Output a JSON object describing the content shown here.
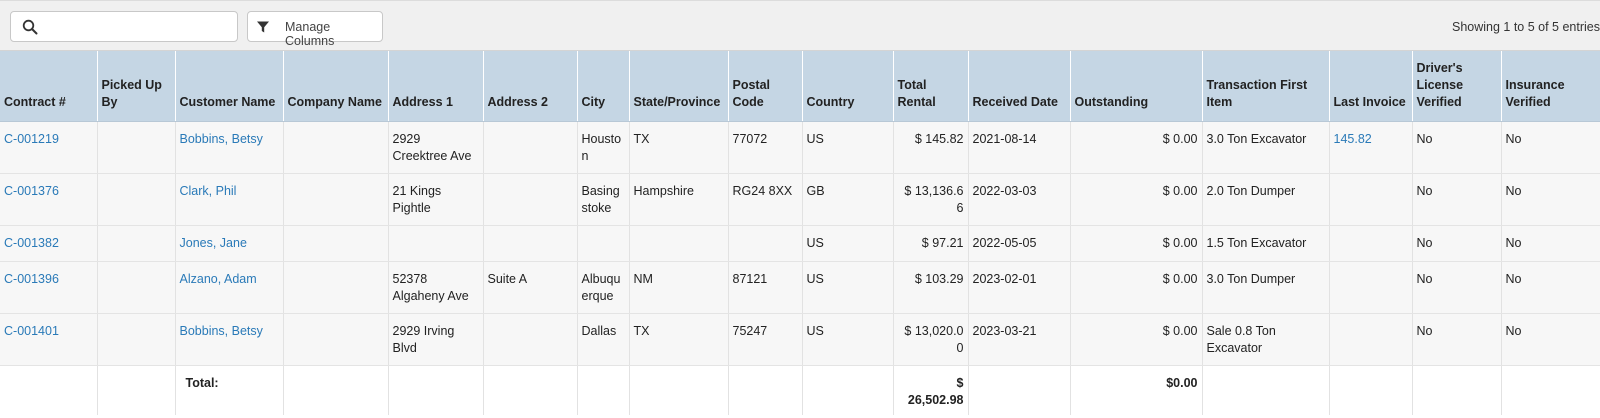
{
  "toolbar": {
    "search": {
      "value": "",
      "placeholder": "",
      "icon": "search-icon"
    },
    "manage_columns_label": "Manage Columns",
    "manage_columns_icon": "filter-icon",
    "entries_info": "Showing 1 to 5 of 5 entries"
  },
  "table": {
    "headers": [
      "Contract #",
      "Picked Up By",
      "Customer Name",
      "Company Name",
      "Address 1",
      "Address 2",
      "City",
      "State/Province",
      "Postal Code",
      "Country",
      "Total Rental",
      "Received Date",
      "Outstanding",
      "Transaction First Item",
      "Last Invoice",
      "Driver's License Verified",
      "Insurance Verified"
    ],
    "rows": [
      {
        "contract": "C-001219",
        "picked_up_by": "",
        "customer": "Bobbins, Betsy",
        "company": "",
        "address1": "2929 Creektree Ave",
        "address2": "",
        "city": "Houston",
        "state": "TX",
        "postal": "77072",
        "country": "US",
        "total_rental": "$ 145.82",
        "received_date": "2021-08-14",
        "outstanding": "$ 0.00",
        "first_item": "3.0 Ton Excavator",
        "last_invoice": "145.82",
        "dl_verified": "No",
        "ins_verified": "No"
      },
      {
        "contract": "C-001376",
        "picked_up_by": "",
        "customer": "Clark, Phil",
        "company": "",
        "address1": "21 Kings Pightle",
        "address2": "",
        "city": "Basingstoke",
        "state": "Hampshire",
        "postal": "RG24 8XX",
        "country": "GB",
        "total_rental": "$ 13,136.66",
        "received_date": "2022-03-03",
        "outstanding": "$ 0.00",
        "first_item": "2.0 Ton Dumper",
        "last_invoice": "",
        "dl_verified": "No",
        "ins_verified": "No"
      },
      {
        "contract": "C-001382",
        "picked_up_by": "",
        "customer": "Jones, Jane",
        "company": "",
        "address1": "",
        "address2": "",
        "city": "",
        "state": "",
        "postal": "",
        "country": "US",
        "total_rental": "$ 97.21",
        "received_date": "2022-05-05",
        "outstanding": "$ 0.00",
        "first_item": "1.5 Ton Excavator",
        "last_invoice": "",
        "dl_verified": "No",
        "ins_verified": "No"
      },
      {
        "contract": "C-001396",
        "picked_up_by": "",
        "customer": "Alzano, Adam",
        "company": "",
        "address1": "52378 Algaheny Ave",
        "address2": "Suite A",
        "city": "Albuquerque",
        "state": "NM",
        "postal": "87121",
        "country": "US",
        "total_rental": "$ 103.29",
        "received_date": "2023-02-01",
        "outstanding": "$ 0.00",
        "first_item": "3.0 Ton Dumper",
        "last_invoice": "",
        "dl_verified": "No",
        "ins_verified": "No"
      },
      {
        "contract": "C-001401",
        "picked_up_by": "",
        "customer": "Bobbins, Betsy",
        "company": "",
        "address1": "2929 Irving Blvd",
        "address2": "",
        "city": "Dallas",
        "state": "TX",
        "postal": "75247",
        "country": "US",
        "total_rental": "$ 13,020.00",
        "received_date": "2023-03-21",
        "outstanding": "$ 0.00",
        "first_item": "Sale 0.8 Ton Excavator",
        "last_invoice": "",
        "dl_verified": "No",
        "ins_verified": "No"
      }
    ],
    "totals": {
      "label": "Total:",
      "total_rental": "$ 26,502.98",
      "outstanding": "$0.00"
    }
  }
}
